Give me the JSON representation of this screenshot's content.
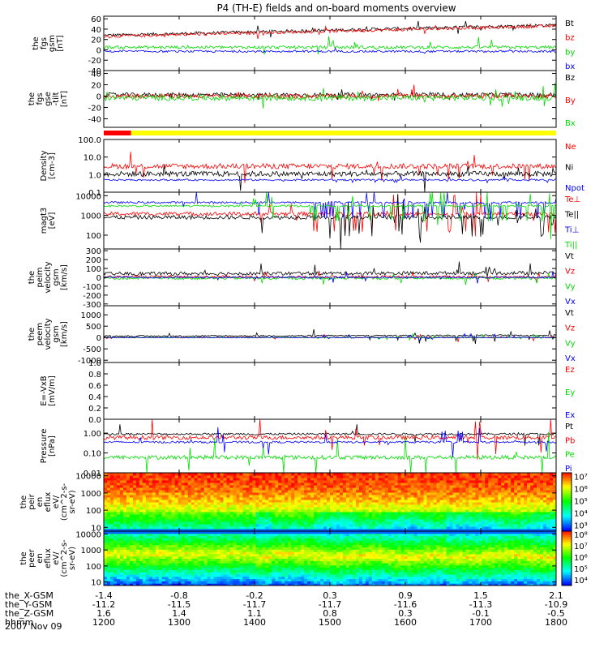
{
  "title": "P4 (TH-E) fields and on-board moments overview",
  "date_label": "2007 Nov 09",
  "colors": {
    "black": "#000000",
    "red": "#ff0000",
    "green": "#00dd00",
    "blue": "#0000ff",
    "yellow": "#ffff00"
  },
  "status_bar": {
    "red_fraction": 0.06
  },
  "chart_data": [
    {
      "type": "line",
      "id": "fgs",
      "ylabel": [
        "the",
        "fgs",
        "gsm",
        "[nT]"
      ],
      "ylim": [
        -40,
        65
      ],
      "yscale": "linear",
      "ticks": [
        "60",
        "40",
        "20",
        "0",
        "-20",
        "-40"
      ],
      "tick_values": [
        60,
        40,
        20,
        0,
        -20,
        -40
      ],
      "series": [
        {
          "name": "Bt",
          "color": "black",
          "baseline": 28,
          "trend": 20,
          "noise": 3,
          "spike": 14
        },
        {
          "name": "bz",
          "color": "red",
          "baseline": 26,
          "trend": 20,
          "noise": 3,
          "spike": 12
        },
        {
          "name": "by",
          "color": "green",
          "baseline": 5,
          "trend": 0,
          "noise": 3,
          "spike": 25
        },
        {
          "name": "bx",
          "color": "blue",
          "baseline": -3,
          "trend": 0,
          "noise": 2,
          "spike": 10
        }
      ]
    },
    {
      "type": "line",
      "id": "fgs_dsl",
      "ylabel": [
        "the",
        "fgs",
        "gse",
        "-tilt",
        "[nT]"
      ],
      "ylim": [
        -55,
        45
      ],
      "yscale": "linear",
      "ticks": [
        "40",
        "20",
        "0",
        "-20",
        "-40"
      ],
      "tick_values": [
        40,
        20,
        0,
        -20,
        -40
      ],
      "series": [
        {
          "name": "Bz",
          "color": "black",
          "baseline": 2,
          "trend": 0,
          "noise": 4,
          "spike": 15
        },
        {
          "name": "By",
          "color": "red",
          "baseline": 0,
          "trend": 0,
          "noise": 4,
          "spike": 18
        },
        {
          "name": "Bx",
          "color": "green",
          "baseline": -3,
          "trend": 0,
          "noise": 5,
          "spike": 25
        }
      ]
    },
    {
      "type": "line",
      "id": "density",
      "ylabel": [
        "Density",
        "[cm-3]"
      ],
      "ylim": [
        0.1,
        100
      ],
      "yscale": "log",
      "ticks": [
        "100.0",
        "10.0",
        "1.0",
        "0.1"
      ],
      "tick_values": [
        100,
        10,
        1,
        0.1
      ],
      "series": [
        {
          "name": "Ne",
          "color": "red",
          "baseline": 3,
          "trend": 0,
          "noise": 0.15,
          "spike": 0.5
        },
        {
          "name": "Ni",
          "color": "black",
          "baseline": 1.1,
          "trend": 0,
          "noise": 0.15,
          "spike": 0.5
        },
        {
          "name": "Npot",
          "color": "blue",
          "baseline": 0.5,
          "trend": 0,
          "noise": 0.05,
          "spike": 0.1
        }
      ]
    },
    {
      "type": "line",
      "id": "temperature",
      "ylabel": [
        "magt3",
        "[eV]"
      ],
      "ylim": [
        20,
        15000
      ],
      "yscale": "log",
      "ticks": [
        "10000",
        "1000",
        "100"
      ],
      "tick_values": [
        10000,
        1000,
        100
      ],
      "series": [
        {
          "name": "Te⊥",
          "color": "red",
          "baseline": 1200,
          "trend": 0,
          "noise": 0.1,
          "spike": 0.6
        },
        {
          "name": "Te||",
          "color": "black",
          "baseline": 800,
          "trend": 0,
          "noise": 0.1,
          "spike": 0.6
        },
        {
          "name": "Ti⊥",
          "color": "blue",
          "baseline": 4500,
          "trend": 0,
          "noise": 0.05,
          "spike": 0.5
        },
        {
          "name": "Ti||",
          "color": "green",
          "baseline": 3000,
          "trend": 0,
          "noise": 0.05,
          "spike": 0.5
        }
      ]
    },
    {
      "type": "line",
      "id": "peim_velocity",
      "ylabel": [
        "the",
        "peim",
        "velocity",
        "gsm",
        "[km/s]"
      ],
      "ylim": [
        -320,
        320
      ],
      "yscale": "linear",
      "ticks": [
        "300",
        "200",
        "100",
        "0",
        "-100",
        "-200",
        "-300"
      ],
      "tick_values": [
        300,
        200,
        100,
        0,
        -100,
        -200,
        -300
      ],
      "series": [
        {
          "name": "Vt",
          "color": "black",
          "baseline": 40,
          "trend": 10,
          "noise": 20,
          "spike": 120
        },
        {
          "name": "Vz",
          "color": "red",
          "baseline": 5,
          "trend": 0,
          "noise": 15,
          "spike": 80
        },
        {
          "name": "Vy",
          "color": "green",
          "baseline": -10,
          "trend": 0,
          "noise": 15,
          "spike": 80
        },
        {
          "name": "Vx",
          "color": "blue",
          "baseline": 0,
          "trend": 0,
          "noise": 10,
          "spike": 80
        }
      ]
    },
    {
      "type": "line",
      "id": "peem_velocity",
      "ylabel": [
        "the",
        "peem",
        "velocity",
        "gsm",
        "[km/s]"
      ],
      "ylim": [
        -1100,
        1400
      ],
      "yscale": "linear",
      "ticks": [
        "1000",
        "500",
        "0",
        "-500",
        "-1000"
      ],
      "tick_values": [
        1000,
        500,
        0,
        -500,
        -1000
      ],
      "series": [
        {
          "name": "Vt",
          "color": "black",
          "baseline": 60,
          "trend": 40,
          "noise": 30,
          "spike": 500
        },
        {
          "name": "Vz",
          "color": "red",
          "baseline": 0,
          "trend": 0,
          "noise": 20,
          "spike": 200
        },
        {
          "name": "Vy",
          "color": "green",
          "baseline": 0,
          "trend": 0,
          "noise": 20,
          "spike": 150
        },
        {
          "name": "Vx",
          "color": "blue",
          "baseline": 0,
          "trend": 0,
          "noise": 20,
          "spike": 200
        }
      ]
    },
    {
      "type": "line",
      "id": "efield",
      "ylabel": [
        "E=-VxB",
        "[mV/m]"
      ],
      "ylim": [
        0,
        1
      ],
      "yscale": "linear",
      "ticks": [
        "1.0",
        "0.8",
        "0.6",
        "0.4",
        "0.2",
        "0.0"
      ],
      "tick_values": [
        1,
        0.8,
        0.6,
        0.4,
        0.2,
        0
      ],
      "series": [
        {
          "name": "Ez",
          "color": "red"
        },
        {
          "name": "Ey",
          "color": "green"
        },
        {
          "name": "Ex",
          "color": "blue"
        }
      ]
    },
    {
      "type": "line",
      "id": "pressure",
      "ylabel": [
        "Pressure",
        "[nPa]"
      ],
      "ylim": [
        0.01,
        5
      ],
      "yscale": "log",
      "ticks": [
        "1.00",
        "0.10",
        "0.01"
      ],
      "tick_values": [
        1,
        0.1,
        0.01
      ],
      "series": [
        {
          "name": "Pt",
          "color": "black",
          "baseline": 0.9,
          "trend": 0,
          "noise": 0.05,
          "spike": 0.3
        },
        {
          "name": "Pb",
          "color": "red",
          "baseline": 0.6,
          "trend": 0,
          "noise": 0.1,
          "spike": 0.6
        },
        {
          "name": "Pe",
          "color": "green",
          "baseline": 0.06,
          "trend": 0,
          "noise": 0.1,
          "spike": 0.6
        },
        {
          "name": "Pi",
          "color": "blue",
          "baseline": 0.35,
          "trend": 0,
          "noise": 0.05,
          "spike": 0.4
        }
      ]
    },
    {
      "type": "heatmap",
      "id": "peir_spectrogram",
      "ylabel": [
        "the",
        "peir",
        "en",
        "eflux",
        "eV/",
        "(cm^2-s-",
        "sr-eV)"
      ],
      "ylim": [
        6,
        15000
      ],
      "yscale": "log",
      "ticks": [
        "10000",
        "1000",
        "100",
        "10"
      ],
      "tick_values": [
        10000,
        1000,
        100,
        10
      ],
      "colorbar_ticks": [
        "10⁷",
        "10⁶",
        "10⁵",
        "10⁴",
        "10³"
      ],
      "colorbar_range": [
        2.5,
        7.3
      ]
    },
    {
      "type": "heatmap",
      "id": "peer_spectrogram",
      "ylabel": [
        "the",
        "peer",
        "en",
        "eflux",
        "eV/",
        "(cm^2-s-",
        "sr-eV)"
      ],
      "ylim": [
        6,
        15000
      ],
      "yscale": "log",
      "ticks": [
        "10000",
        "1000",
        "100",
        "10"
      ],
      "tick_values": [
        10000,
        1000,
        100,
        10
      ],
      "colorbar_ticks": [
        "10⁸",
        "10⁷",
        "10⁶",
        "10⁵",
        "10⁴"
      ],
      "colorbar_range": [
        3.6,
        8.4
      ]
    }
  ],
  "x_axis": {
    "rows": [
      {
        "label": "the_X-GSM",
        "values": [
          "-1.4",
          "-0.8",
          "-0.2",
          "0.3",
          "0.9",
          "1.5",
          "2.1"
        ]
      },
      {
        "label": "the_Y-GSM",
        "values": [
          "-11.2",
          "-11.5",
          "-11.7",
          "-11.7",
          "-11.6",
          "-11.3",
          "-10.9"
        ]
      },
      {
        "label": "the_Z-GSM",
        "values": [
          "1.6",
          "1.4",
          "1.1",
          "0.8",
          "0.3",
          "-0.1",
          "-0.5"
        ]
      },
      {
        "label": "hhmm",
        "values": [
          "1200",
          "1300",
          "1400",
          "1500",
          "1600",
          "1700",
          "1800"
        ]
      }
    ]
  }
}
